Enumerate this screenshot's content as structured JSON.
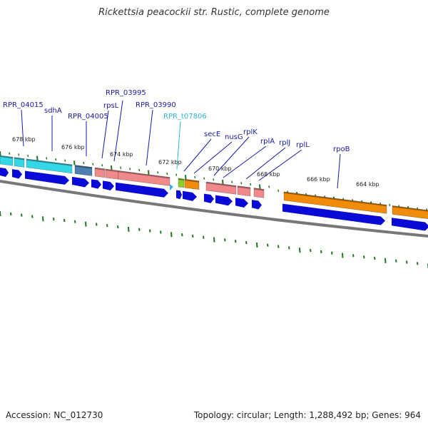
{
  "title": "Rickettsia peacockii str. Rustic, complete genome",
  "footer": {
    "accession": "Accession: NC_012730",
    "summary": "Topology: circular; Length: 1,288,492 bp; Genes: 964"
  },
  "colors": {
    "cds_arrow": "#0a0ad6",
    "backbone": "#777777",
    "ticks": "#1f7a1f",
    "label": "#1a1aa6",
    "trna_label": "#33b5d6",
    "feature_cyan": "#35d6e6",
    "feature_steel": "#4a7fb0",
    "feature_pink": "#f08a8a",
    "feature_orange": "#f08c0a",
    "feature_lime": "#8ccf2a"
  },
  "tick_labels": [
    "678 kbp",
    "676 kbp",
    "674 kbp",
    "672 kbp",
    "670 kbp",
    "668 kbp",
    "666 kbp",
    "664 kbp"
  ],
  "gene_labels": [
    {
      "text": "RPR_04015",
      "kind": "gene"
    },
    {
      "text": "sdhA",
      "kind": "gene"
    },
    {
      "text": "RPR_04005",
      "kind": "gene"
    },
    {
      "text": "rpsL",
      "kind": "gene"
    },
    {
      "text": "RPR_03995",
      "kind": "gene"
    },
    {
      "text": "RPR_03990",
      "kind": "gene"
    },
    {
      "text": "RPR_t07806",
      "kind": "trna"
    },
    {
      "text": "secE",
      "kind": "gene"
    },
    {
      "text": "nusG",
      "kind": "gene"
    },
    {
      "text": "rplK",
      "kind": "gene"
    },
    {
      "text": "rplA",
      "kind": "gene"
    },
    {
      "text": "rplJ",
      "kind": "gene"
    },
    {
      "text": "rplL",
      "kind": "gene"
    },
    {
      "text": "rpoB",
      "kind": "gene"
    }
  ]
}
